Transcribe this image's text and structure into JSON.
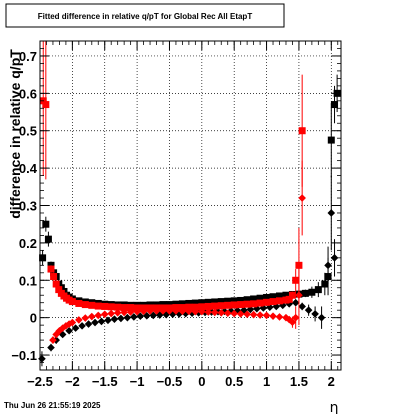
{
  "chart_data": {
    "type": "scatter",
    "title": "Fitted difference in relative q/pT for Global Rec All EtapT",
    "xlabel": "η",
    "ylabel": "difference in relative q/pT",
    "timestamp": "Thu Jun 26 21:55:19 2025",
    "xlim": [
      -2.5,
      2.15
    ],
    "ylim": [
      -0.14,
      0.74
    ],
    "grid": true,
    "xticks": [
      -2.5,
      -2,
      -1.5,
      -1,
      -0.5,
      0,
      0.5,
      1,
      1.5,
      2
    ],
    "xtick_labels": [
      "−2.5",
      "−2",
      "−1.5",
      "−1",
      "−0.5",
      "0",
      "0.5",
      "1",
      "1.5",
      "2"
    ],
    "yticks": [
      -0.1,
      0,
      0.1,
      0.2,
      0.3,
      0.4,
      0.5,
      0.6,
      0.7
    ],
    "ytick_labels": [
      "−0.1",
      "0",
      "0.1",
      "0.2",
      "0.3",
      "0.4",
      "0.5",
      "0.6",
      "0.7"
    ],
    "series": [
      {
        "color": "#000000",
        "marker": "square",
        "points": [
          [
            -2.46,
            0.16,
            0.02
          ],
          [
            -2.41,
            0.25,
            0.02
          ],
          [
            -2.37,
            0.21,
            0.02
          ],
          [
            -2.33,
            0.14,
            0.01
          ],
          [
            -2.29,
            0.12,
            0.01
          ],
          [
            -2.25,
            0.11,
            0.01
          ],
          [
            -2.21,
            0.09,
            0.01
          ],
          [
            -2.17,
            0.08,
            0.005
          ],
          [
            -2.13,
            0.07,
            0.005
          ],
          [
            -2.09,
            0.06,
            0.005
          ],
          [
            -2.05,
            0.055,
            0.005
          ],
          [
            -2.0,
            0.05,
            0.004
          ],
          [
            -1.9,
            0.045,
            0.003
          ],
          [
            -1.8,
            0.042,
            0.003
          ],
          [
            -1.7,
            0.04,
            0.003
          ],
          [
            -1.6,
            0.038,
            0.003
          ],
          [
            -1.5,
            0.036,
            0.003
          ],
          [
            -1.4,
            0.035,
            0.003
          ],
          [
            -1.3,
            0.034,
            0.003
          ],
          [
            -1.2,
            0.034,
            0.003
          ],
          [
            -1.1,
            0.033,
            0.003
          ],
          [
            -1.0,
            0.033,
            0.003
          ],
          [
            -0.9,
            0.033,
            0.003
          ],
          [
            -0.8,
            0.034,
            0.003
          ],
          [
            -0.7,
            0.034,
            0.003
          ],
          [
            -0.6,
            0.035,
            0.003
          ],
          [
            -0.5,
            0.035,
            0.003
          ],
          [
            -0.4,
            0.036,
            0.003
          ],
          [
            -0.3,
            0.037,
            0.003
          ],
          [
            -0.2,
            0.038,
            0.003
          ],
          [
            -0.1,
            0.039,
            0.003
          ],
          [
            0.0,
            0.04,
            0.003
          ],
          [
            0.1,
            0.041,
            0.003
          ],
          [
            0.2,
            0.042,
            0.003
          ],
          [
            0.3,
            0.043,
            0.003
          ],
          [
            0.4,
            0.044,
            0.003
          ],
          [
            0.5,
            0.045,
            0.003
          ],
          [
            0.6,
            0.046,
            0.003
          ],
          [
            0.7,
            0.048,
            0.003
          ],
          [
            0.8,
            0.05,
            0.003
          ],
          [
            0.9,
            0.052,
            0.004
          ],
          [
            1.0,
            0.054,
            0.004
          ],
          [
            1.1,
            0.056,
            0.004
          ],
          [
            1.2,
            0.058,
            0.005
          ],
          [
            1.3,
            0.06,
            0.005
          ],
          [
            1.4,
            0.062,
            0.006
          ],
          [
            1.5,
            0.063,
            0.007
          ],
          [
            1.6,
            0.065,
            0.01
          ],
          [
            1.7,
            0.068,
            0.015
          ],
          [
            1.8,
            0.075,
            0.02
          ],
          [
            1.9,
            0.09,
            0.03
          ],
          [
            1.95,
            0.11,
            0.05
          ],
          [
            2.0,
            0.475,
            0.1
          ],
          [
            2.05,
            0.57,
            0.05
          ],
          [
            2.09,
            0.6,
            0.05
          ]
        ]
      },
      {
        "color": "#000000",
        "marker": "diamond",
        "points": [
          [
            -2.47,
            -0.11,
            0.02
          ],
          [
            -2.33,
            -0.08,
            0.01
          ],
          [
            -2.25,
            -0.06,
            0.01
          ],
          [
            -2.15,
            -0.045,
            0.005
          ],
          [
            -2.05,
            -0.035,
            0.005
          ],
          [
            -1.95,
            -0.028,
            0.004
          ],
          [
            -1.85,
            -0.022,
            0.003
          ],
          [
            -1.75,
            -0.017,
            0.003
          ],
          [
            -1.65,
            -0.013,
            0.003
          ],
          [
            -1.55,
            -0.01,
            0.003
          ],
          [
            -1.45,
            -0.007,
            0.003
          ],
          [
            -1.35,
            -0.004,
            0.003
          ],
          [
            -1.25,
            -0.002,
            0.003
          ],
          [
            -1.15,
            0.0,
            0.003
          ],
          [
            -1.05,
            0.002,
            0.003
          ],
          [
            -0.95,
            0.004,
            0.003
          ],
          [
            -0.85,
            0.005,
            0.003
          ],
          [
            -0.75,
            0.006,
            0.003
          ],
          [
            -0.65,
            0.007,
            0.003
          ],
          [
            -0.55,
            0.008,
            0.003
          ],
          [
            -0.45,
            0.009,
            0.003
          ],
          [
            -0.35,
            0.01,
            0.003
          ],
          [
            -0.25,
            0.011,
            0.003
          ],
          [
            -0.15,
            0.012,
            0.003
          ],
          [
            -0.05,
            0.013,
            0.003
          ],
          [
            0.05,
            0.014,
            0.003
          ],
          [
            0.15,
            0.015,
            0.003
          ],
          [
            0.25,
            0.016,
            0.003
          ],
          [
            0.35,
            0.017,
            0.003
          ],
          [
            0.45,
            0.018,
            0.003
          ],
          [
            0.55,
            0.019,
            0.003
          ],
          [
            0.65,
            0.02,
            0.003
          ],
          [
            0.75,
            0.022,
            0.003
          ],
          [
            0.85,
            0.024,
            0.003
          ],
          [
            0.95,
            0.026,
            0.004
          ],
          [
            1.05,
            0.028,
            0.004
          ],
          [
            1.15,
            0.03,
            0.004
          ],
          [
            1.25,
            0.033,
            0.005
          ],
          [
            1.35,
            0.037,
            0.006
          ],
          [
            1.45,
            0.04,
            0.007
          ],
          [
            1.55,
            0.03,
            0.01
          ],
          [
            1.65,
            0.02,
            0.015
          ],
          [
            1.75,
            0.01,
            0.02
          ],
          [
            1.85,
            0.0,
            0.03
          ],
          [
            1.95,
            0.14,
            0.05
          ],
          [
            2.0,
            0.28,
            0.1
          ],
          [
            2.05,
            0.16,
            0.05
          ]
        ]
      },
      {
        "color": "#ff0000",
        "marker": "square",
        "points": [
          [
            -2.45,
            0.58,
            0.2
          ],
          [
            -2.41,
            0.57,
            0.2
          ],
          [
            -2.33,
            0.13,
            0.01
          ],
          [
            -2.29,
            0.11,
            0.01
          ],
          [
            -2.25,
            0.09,
            0.01
          ],
          [
            -2.21,
            0.075,
            0.005
          ],
          [
            -2.17,
            0.065,
            0.005
          ],
          [
            -2.13,
            0.058,
            0.005
          ],
          [
            -2.09,
            0.052,
            0.005
          ],
          [
            -2.05,
            0.047,
            0.004
          ],
          [
            -2.0,
            0.043,
            0.004
          ],
          [
            -1.9,
            0.038,
            0.003
          ],
          [
            -1.8,
            0.035,
            0.003
          ],
          [
            -1.7,
            0.033,
            0.003
          ],
          [
            -1.6,
            0.031,
            0.003
          ],
          [
            -1.5,
            0.03,
            0.003
          ],
          [
            -1.4,
            0.029,
            0.003
          ],
          [
            -1.3,
            0.028,
            0.003
          ],
          [
            -1.2,
            0.027,
            0.003
          ],
          [
            -1.1,
            0.027,
            0.003
          ],
          [
            -1.0,
            0.026,
            0.003
          ],
          [
            -0.9,
            0.026,
            0.003
          ],
          [
            -0.8,
            0.026,
            0.003
          ],
          [
            -0.7,
            0.026,
            0.003
          ],
          [
            -0.6,
            0.026,
            0.003
          ],
          [
            -0.5,
            0.026,
            0.003
          ],
          [
            -0.4,
            0.027,
            0.003
          ],
          [
            -0.3,
            0.027,
            0.003
          ],
          [
            -0.2,
            0.028,
            0.003
          ],
          [
            -0.1,
            0.028,
            0.003
          ],
          [
            0.0,
            0.029,
            0.003
          ],
          [
            0.1,
            0.03,
            0.003
          ],
          [
            0.2,
            0.031,
            0.003
          ],
          [
            0.3,
            0.032,
            0.003
          ],
          [
            0.4,
            0.033,
            0.003
          ],
          [
            0.5,
            0.034,
            0.003
          ],
          [
            0.6,
            0.035,
            0.003
          ],
          [
            0.7,
            0.036,
            0.003
          ],
          [
            0.8,
            0.037,
            0.003
          ],
          [
            0.9,
            0.039,
            0.004
          ],
          [
            1.0,
            0.041,
            0.004
          ],
          [
            1.1,
            0.043,
            0.004
          ],
          [
            1.2,
            0.045,
            0.005
          ],
          [
            1.3,
            0.047,
            0.006
          ],
          [
            1.35,
            0.049,
            0.007
          ],
          [
            1.4,
            0.06,
            0.01
          ],
          [
            1.45,
            0.1,
            0.03
          ],
          [
            1.5,
            0.14,
            0.1
          ],
          [
            1.55,
            0.5,
            0.15
          ]
        ]
      },
      {
        "color": "#ff0000",
        "marker": "diamond",
        "points": [
          [
            -2.3,
            -0.06,
            0.01
          ],
          [
            -2.25,
            -0.045,
            0.01
          ],
          [
            -2.2,
            -0.035,
            0.005
          ],
          [
            -2.15,
            -0.028,
            0.005
          ],
          [
            -2.1,
            -0.022,
            0.005
          ],
          [
            -2.05,
            -0.017,
            0.004
          ],
          [
            -2.0,
            -0.013,
            0.004
          ],
          [
            -1.9,
            -0.006,
            0.003
          ],
          [
            -1.8,
            -0.001,
            0.003
          ],
          [
            -1.7,
            0.003,
            0.003
          ],
          [
            -1.6,
            0.006,
            0.003
          ],
          [
            -1.5,
            0.009,
            0.003
          ],
          [
            -1.4,
            0.011,
            0.003
          ],
          [
            -1.3,
            0.013,
            0.003
          ],
          [
            -1.2,
            0.014,
            0.003
          ],
          [
            -1.1,
            0.015,
            0.003
          ],
          [
            -1.0,
            0.016,
            0.003
          ],
          [
            -0.9,
            0.017,
            0.003
          ],
          [
            -0.8,
            0.018,
            0.003
          ],
          [
            -0.7,
            0.018,
            0.003
          ],
          [
            -0.6,
            0.018,
            0.003
          ],
          [
            -0.5,
            0.018,
            0.003
          ],
          [
            -0.4,
            0.018,
            0.003
          ],
          [
            -0.3,
            0.017,
            0.003
          ],
          [
            -0.2,
            0.017,
            0.003
          ],
          [
            -0.1,
            0.016,
            0.003
          ],
          [
            0.0,
            0.016,
            0.003
          ],
          [
            0.1,
            0.015,
            0.003
          ],
          [
            0.2,
            0.014,
            0.003
          ],
          [
            0.3,
            0.013,
            0.003
          ],
          [
            0.4,
            0.012,
            0.003
          ],
          [
            0.5,
            0.011,
            0.003
          ],
          [
            0.6,
            0.01,
            0.003
          ],
          [
            0.7,
            0.009,
            0.003
          ],
          [
            0.8,
            0.008,
            0.003
          ],
          [
            0.9,
            0.007,
            0.004
          ],
          [
            1.0,
            0.006,
            0.004
          ],
          [
            1.1,
            0.004,
            0.004
          ],
          [
            1.2,
            0.002,
            0.005
          ],
          [
            1.3,
            0.0,
            0.006
          ],
          [
            1.35,
            -0.005,
            0.008
          ],
          [
            1.4,
            -0.012,
            0.015
          ],
          [
            1.45,
            0.0,
            0.03
          ],
          [
            1.5,
            0.06,
            0.08
          ],
          [
            1.55,
            0.32,
            0.1
          ]
        ]
      }
    ]
  }
}
